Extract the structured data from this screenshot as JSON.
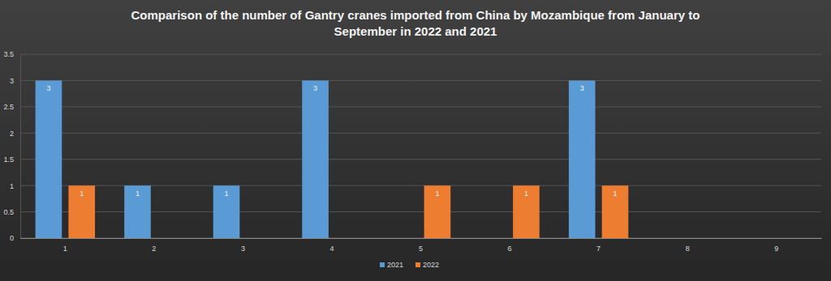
{
  "chart_data": {
    "type": "bar",
    "title": "Comparison of the number of Gantry cranes imported from China by Mozambique from January to September in 2022 and 2021",
    "categories": [
      "1",
      "2",
      "3",
      "4",
      "5",
      "6",
      "7",
      "8",
      "9"
    ],
    "series": [
      {
        "name": "2021",
        "color": "#5b9bd5",
        "values": [
          3,
          1,
          1,
          3,
          null,
          null,
          3,
          null,
          null
        ]
      },
      {
        "name": "2022",
        "color": "#ed7d31",
        "values": [
          1,
          null,
          null,
          null,
          1,
          1,
          1,
          null,
          null
        ]
      }
    ],
    "ylim": [
      0,
      3.5
    ],
    "yticks": [
      0,
      0.5,
      1,
      1.5,
      2,
      2.5,
      3,
      3.5
    ],
    "grid": true,
    "legend": "bottom",
    "data_labels": true
  }
}
